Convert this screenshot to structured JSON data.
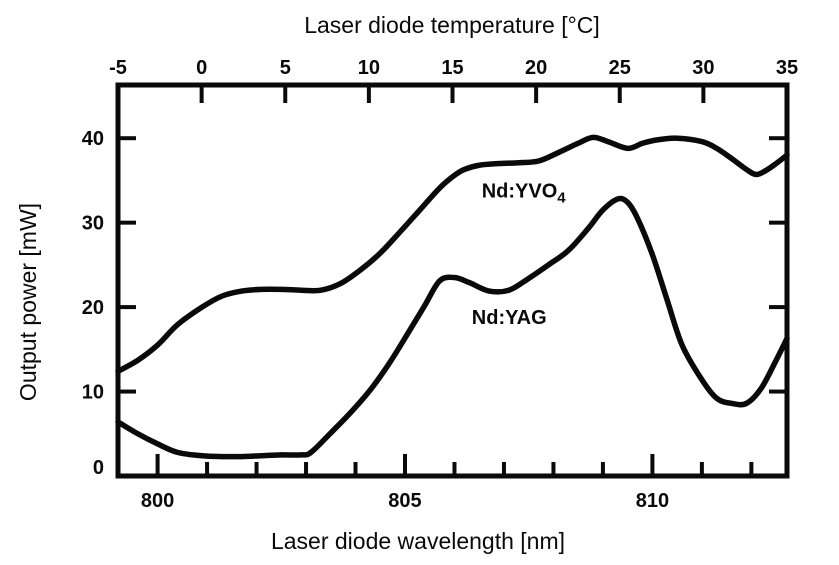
{
  "colors": {
    "ink": "#0a0a0a",
    "background": "#ffffff"
  },
  "chart_data": {
    "type": "line",
    "title": "",
    "top_axis": {
      "label": "Laser diode temperature [°C]",
      "ticks": [
        -5,
        0,
        5,
        10,
        15,
        20,
        25,
        30,
        35
      ],
      "range": [
        -5,
        35
      ]
    },
    "bottom_axis": {
      "label": "Laser diode wavelength [nm]",
      "major_ticks": [
        800,
        805,
        810
      ],
      "minor_tick_step": 1,
      "range": [
        799.2,
        812.72
      ]
    },
    "left_axis": {
      "label": "Output power [mW]",
      "ticks": [
        0,
        10,
        20,
        30,
        40
      ],
      "range": [
        0,
        46.3
      ]
    },
    "grid": false,
    "legend_position": "inline-annotations",
    "series": [
      {
        "name": "Nd:YVO4",
        "color": "#0a0a0a",
        "points": [
          [
            799.2,
            12.4
          ],
          [
            799.6,
            13.7
          ],
          [
            800.0,
            15.5
          ],
          [
            800.4,
            17.9
          ],
          [
            800.9,
            20.0
          ],
          [
            801.3,
            21.3
          ],
          [
            801.7,
            21.9
          ],
          [
            802.1,
            22.1
          ],
          [
            802.5,
            22.1
          ],
          [
            802.9,
            22.0
          ],
          [
            803.3,
            22.0
          ],
          [
            803.7,
            22.8
          ],
          [
            804.1,
            24.4
          ],
          [
            804.5,
            26.4
          ],
          [
            804.9,
            28.9
          ],
          [
            805.3,
            31.5
          ],
          [
            805.7,
            34.1
          ],
          [
            806.0,
            35.6
          ],
          [
            806.2,
            36.3
          ],
          [
            806.5,
            36.8
          ],
          [
            806.9,
            37.0
          ],
          [
            807.3,
            37.1
          ],
          [
            807.7,
            37.3
          ],
          [
            808.1,
            38.3
          ],
          [
            808.5,
            39.4
          ],
          [
            808.8,
            40.1
          ],
          [
            809.1,
            39.6
          ],
          [
            809.5,
            38.8
          ],
          [
            809.8,
            39.4
          ],
          [
            810.1,
            39.8
          ],
          [
            810.5,
            40.0
          ],
          [
            811.0,
            39.6
          ],
          [
            811.3,
            38.8
          ],
          [
            811.6,
            37.6
          ],
          [
            811.9,
            36.3
          ],
          [
            812.1,
            35.7
          ],
          [
            812.3,
            36.2
          ],
          [
            812.5,
            37.0
          ],
          [
            812.72,
            38.0
          ]
        ]
      },
      {
        "name": "Nd:YAG",
        "color": "#0a0a0a",
        "points": [
          [
            799.2,
            6.4
          ],
          [
            799.6,
            5.0
          ],
          [
            800.0,
            3.8
          ],
          [
            800.4,
            2.8
          ],
          [
            800.9,
            2.4
          ],
          [
            801.3,
            2.3
          ],
          [
            801.7,
            2.3
          ],
          [
            802.1,
            2.4
          ],
          [
            802.5,
            2.5
          ],
          [
            802.9,
            2.5
          ],
          [
            803.1,
            2.8
          ],
          [
            803.5,
            5.1
          ],
          [
            803.9,
            7.5
          ],
          [
            804.3,
            10.2
          ],
          [
            804.7,
            13.5
          ],
          [
            805.1,
            17.3
          ],
          [
            805.4,
            20.2
          ],
          [
            805.7,
            23.1
          ],
          [
            806.0,
            23.5
          ],
          [
            806.3,
            22.9
          ],
          [
            806.7,
            21.9
          ],
          [
            807.1,
            22.0
          ],
          [
            807.5,
            23.4
          ],
          [
            807.9,
            25.0
          ],
          [
            808.3,
            26.7
          ],
          [
            808.7,
            29.3
          ],
          [
            809.0,
            31.5
          ],
          [
            809.3,
            32.8
          ],
          [
            809.5,
            32.4
          ],
          [
            809.7,
            30.5
          ],
          [
            810.0,
            26.2
          ],
          [
            810.3,
            20.8
          ],
          [
            810.6,
            15.5
          ],
          [
            811.0,
            11.4
          ],
          [
            811.3,
            9.2
          ],
          [
            811.6,
            8.6
          ],
          [
            811.9,
            8.6
          ],
          [
            812.2,
            10.4
          ],
          [
            812.5,
            13.7
          ],
          [
            812.72,
            16.3
          ]
        ]
      }
    ],
    "annotations": [
      {
        "text_main": "Nd:YVO",
        "text_sub": "4",
        "x": 806.55,
        "y": 33.0
      },
      {
        "text_main": "Nd:YAG",
        "text_sub": "",
        "x": 806.35,
        "y": 18.0
      }
    ]
  }
}
